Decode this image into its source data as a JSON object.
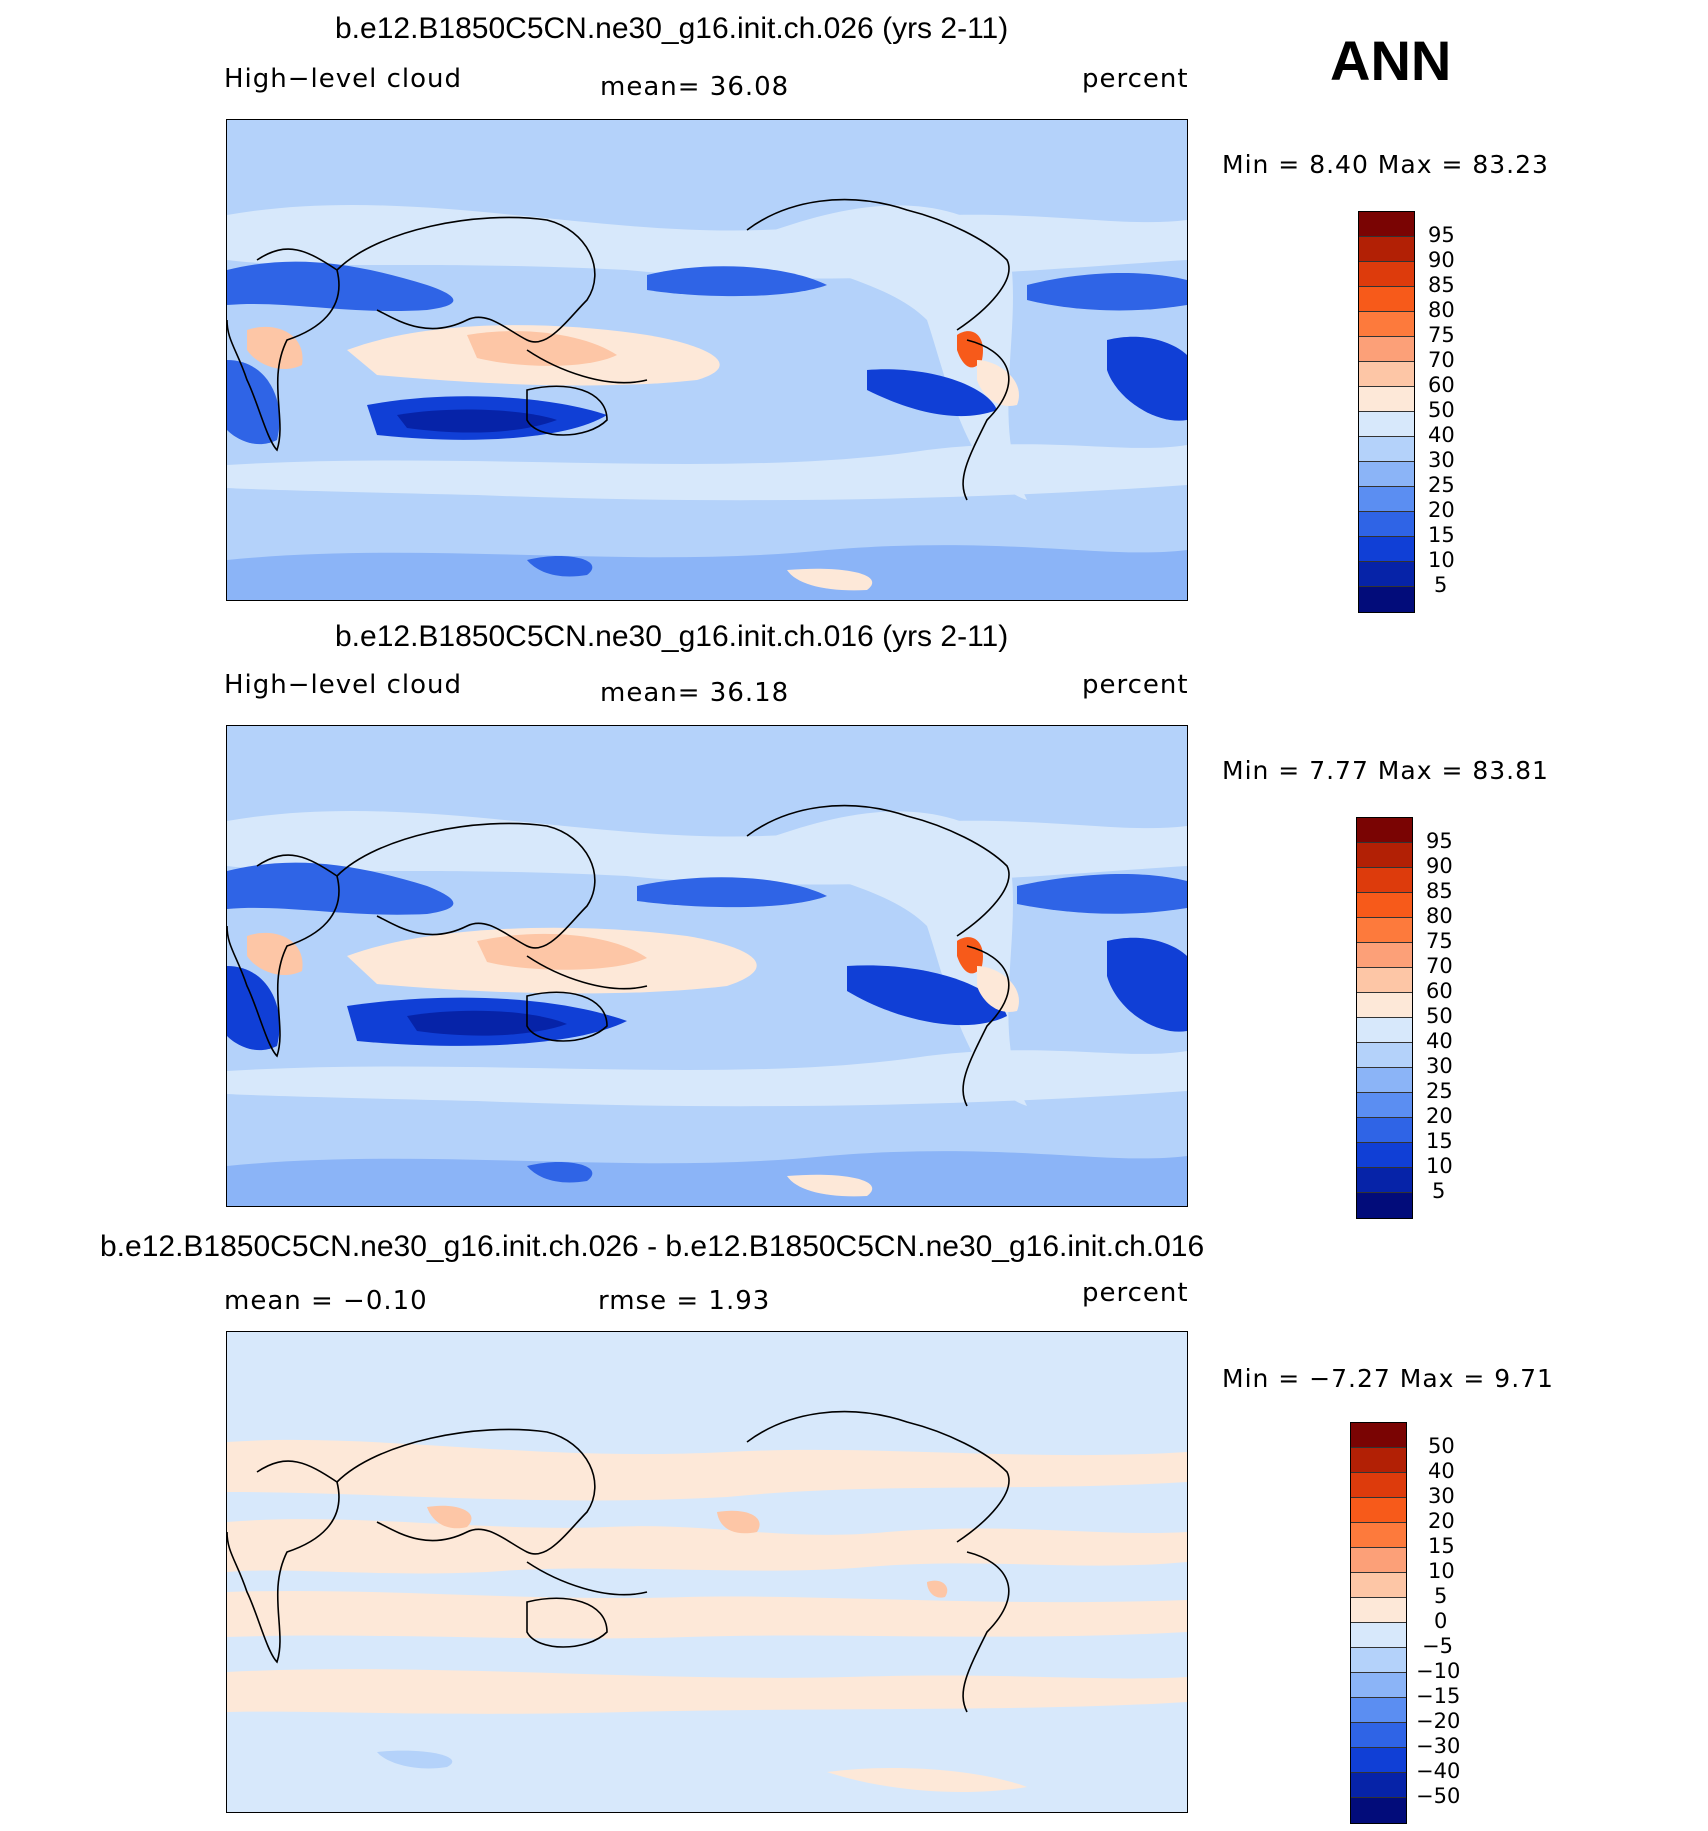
{
  "season": "ANN",
  "panels": [
    {
      "title": "b.e12.B1850C5CN.ne30_g16.init.ch.026 (yrs 2-11)",
      "variable": "High−level cloud",
      "mean_label": "mean=   36.08",
      "units": "percent",
      "minmax": "Min =     8.40  Max =    83.23",
      "colorbar_labels": [
        "95",
        "90",
        "85",
        "80",
        "75",
        "70",
        "60",
        "50",
        "40",
        "30",
        "25",
        "20",
        "15",
        "10",
        "5"
      ],
      "mean": 36.08,
      "min": 8.4,
      "max": 83.23
    },
    {
      "title": "b.e12.B1850C5CN.ne30_g16.init.ch.016 (yrs 2-11)",
      "variable": "High−level cloud",
      "mean_label": "mean=   36.18",
      "units": "percent",
      "minmax": "Min =     7.77  Max =    83.81",
      "colorbar_labels": [
        "95",
        "90",
        "85",
        "80",
        "75",
        "70",
        "60",
        "50",
        "40",
        "30",
        "25",
        "20",
        "15",
        "10",
        "5"
      ],
      "mean": 36.18,
      "min": 7.77,
      "max": 83.81
    },
    {
      "title": "b.e12.B1850C5CN.ne30_g16.init.ch.026 - b.e12.B1850C5CN.ne30_g16.init.ch.016",
      "variable": "mean =    −0.10",
      "mean_label": "rmse =     1.93",
      "units": "percent",
      "minmax": "Min =   −7.27  Max =     9.71",
      "colorbar_labels": [
        "50",
        "40",
        "30",
        "20",
        "15",
        "10",
        "5",
        "0",
        "−5",
        "−10",
        "−15",
        "−20",
        "−30",
        "−40",
        "−50"
      ],
      "mean": -0.1,
      "rmse": 1.93,
      "min": -7.27,
      "max": 9.71
    }
  ],
  "colors": {
    "scale": [
      "#7a0403",
      "#b22005",
      "#dd3b0c",
      "#f75a1a",
      "#fd7a3c",
      "#fca078",
      "#fdc6a6",
      "#fde8d8",
      "#d7e8fb",
      "#b4d2fa",
      "#8bb4f7",
      "#5b8ef2",
      "#2f64e6",
      "#103fd6",
      "#0623a8",
      "#020c7a"
    ]
  }
}
